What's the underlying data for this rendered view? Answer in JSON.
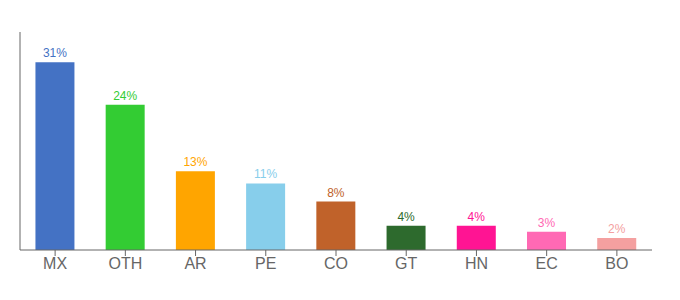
{
  "chart_data": {
    "type": "bar",
    "categories": [
      "MX",
      "OTH",
      "AR",
      "PE",
      "CO",
      "GT",
      "HN",
      "EC",
      "BO"
    ],
    "values": [
      31,
      24,
      13,
      11,
      8,
      4,
      4,
      3,
      2
    ],
    "value_labels": [
      "31%",
      "24%",
      "13%",
      "11%",
      "8%",
      "4%",
      "4%",
      "3%",
      "2%"
    ],
    "colors": [
      "#4472C4",
      "#33CC33",
      "#FFA500",
      "#87CEEB",
      "#C0622A",
      "#2D6A2D",
      "#FF1493",
      "#FF69B4",
      "#F4A0A0"
    ],
    "ylim": [
      0,
      36
    ],
    "data_labels": true,
    "tick_labels": "x",
    "grid": false
  }
}
